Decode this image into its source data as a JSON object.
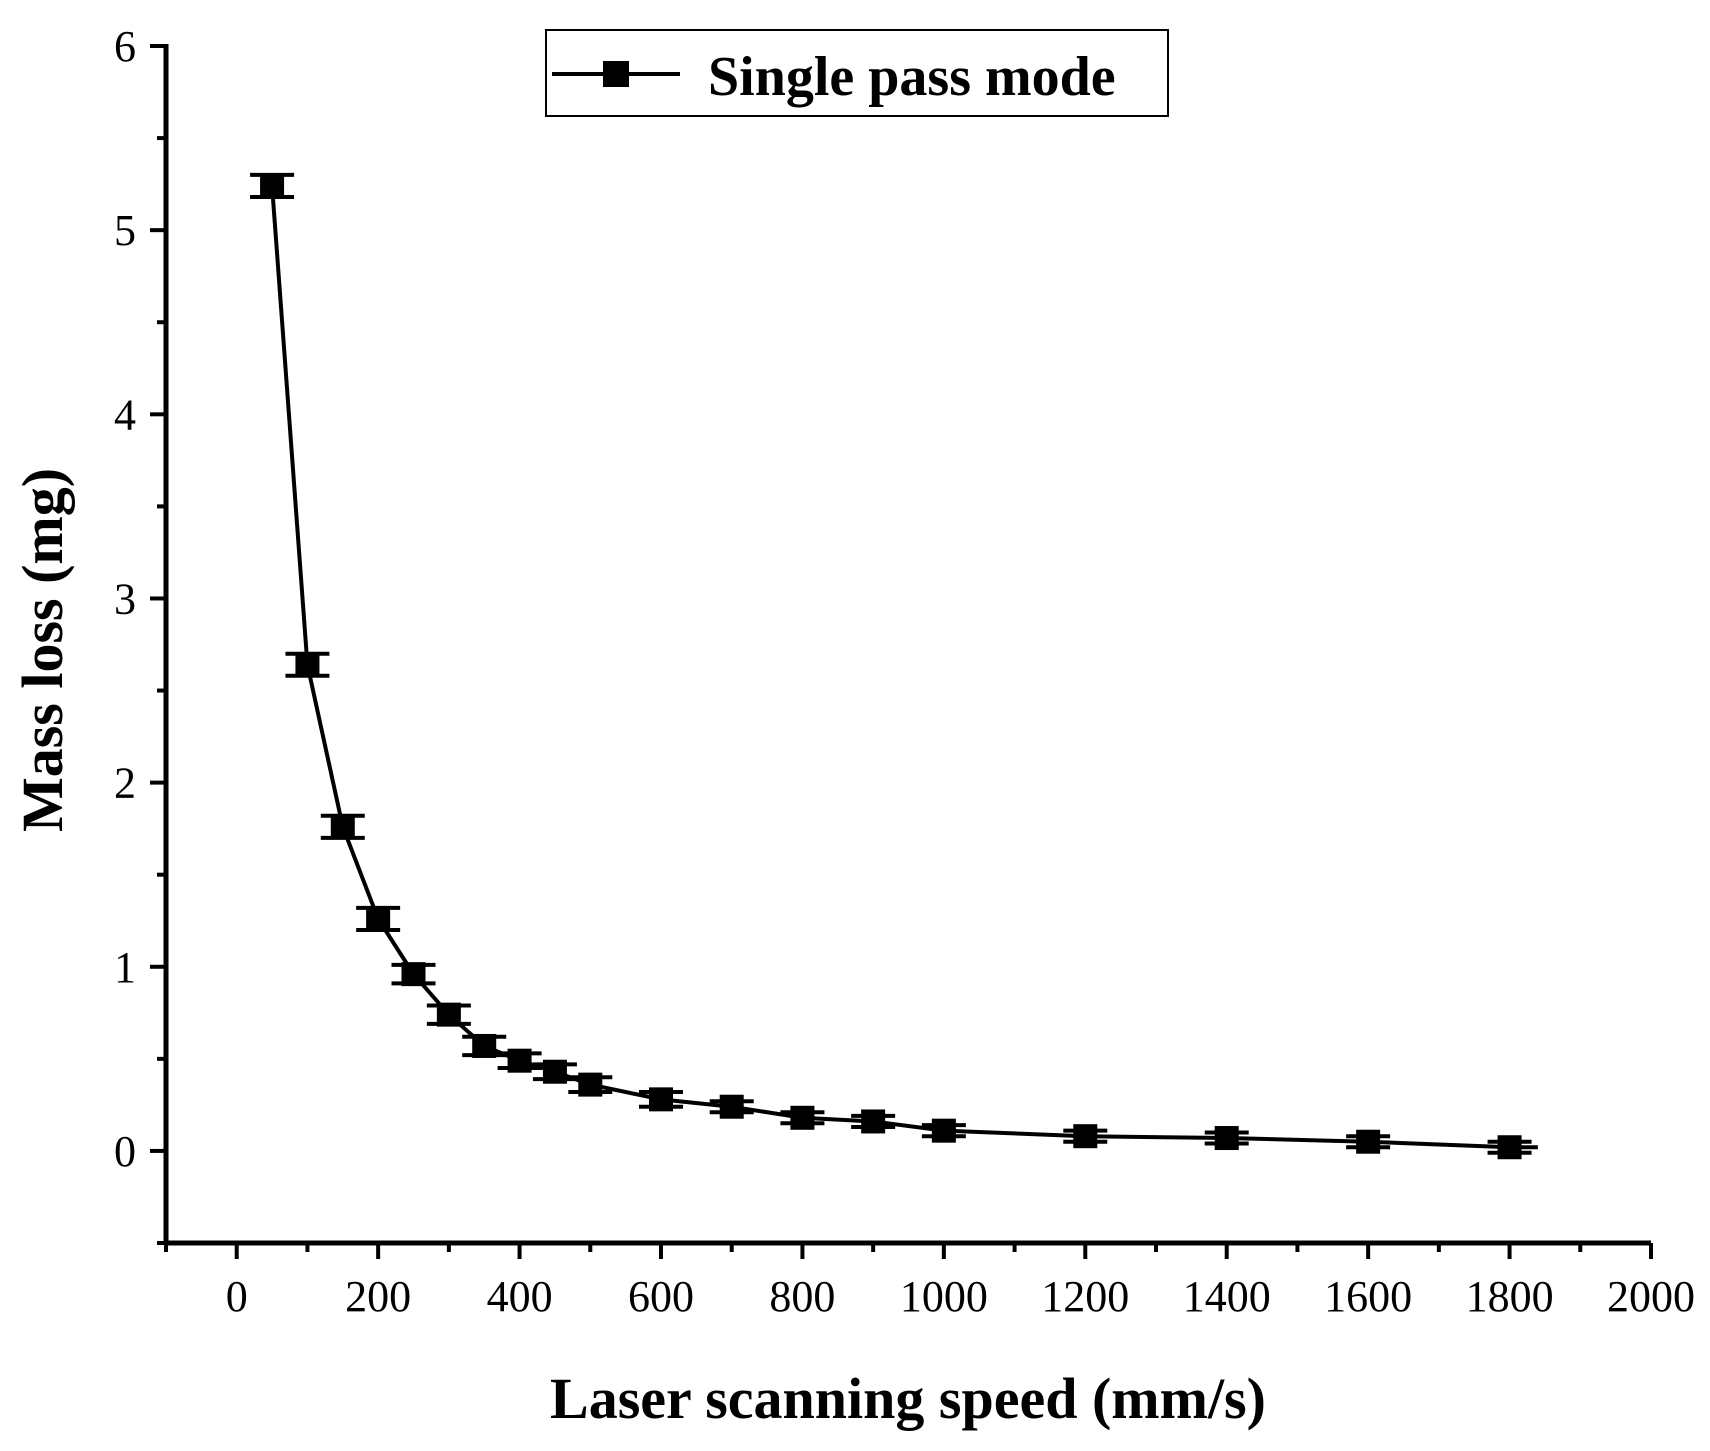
{
  "chart_data": {
    "type": "line",
    "title": "",
    "xlabel": "Laser scanning speed (mm/s)",
    "ylabel": "Mass loss (mg)",
    "xlim": [
      -100,
      2000
    ],
    "ylim": [
      -0.5,
      6
    ],
    "x_ticks": [
      0,
      200,
      400,
      600,
      800,
      1000,
      1200,
      1400,
      1600,
      1800,
      2000
    ],
    "x_tick_labels": [
      "0",
      "200",
      "400",
      "600",
      "800",
      "1000",
      "1200",
      "1400",
      "1600",
      "1800",
      "2000"
    ],
    "y_ticks": [
      0,
      1,
      2,
      3,
      4,
      5,
      6
    ],
    "y_tick_labels": [
      "0",
      "1",
      "2",
      "3",
      "4",
      "5",
      "6"
    ],
    "grid": false,
    "legend_position": "top-center",
    "series": [
      {
        "name": "Single pass mode",
        "marker": "square",
        "color": "#000000",
        "x": [
          50,
          100,
          150,
          200,
          250,
          300,
          350,
          400,
          450,
          500,
          600,
          700,
          800,
          900,
          1000,
          1200,
          1400,
          1600,
          1800
        ],
        "values": [
          5.24,
          2.64,
          1.76,
          1.26,
          0.96,
          0.74,
          0.57,
          0.49,
          0.43,
          0.36,
          0.28,
          0.24,
          0.18,
          0.16,
          0.11,
          0.08,
          0.07,
          0.05,
          0.02
        ],
        "error": [
          0.06,
          0.06,
          0.06,
          0.06,
          0.05,
          0.05,
          0.05,
          0.04,
          0.04,
          0.04,
          0.04,
          0.03,
          0.03,
          0.03,
          0.03,
          0.03,
          0.03,
          0.03,
          0.03
        ]
      }
    ]
  }
}
